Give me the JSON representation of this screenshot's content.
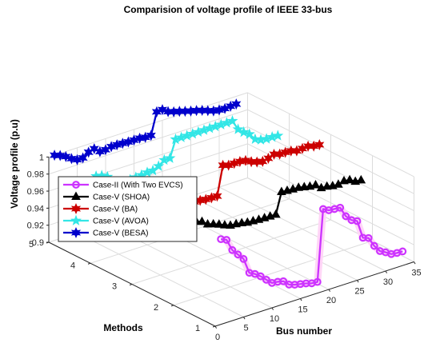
{
  "chart_data": {
    "type": "line3d",
    "title": "Comparision of voltage profile of IEEE 33-bus",
    "xlabel": "Bus number",
    "ylabel": "Methods",
    "zlabel": "Voltage profile (p.u)",
    "xlim": [
      0,
      35
    ],
    "ylim": [
      1,
      5
    ],
    "zlim": [
      0.9,
      1.0
    ],
    "xticks": [
      "0",
      "5",
      "10",
      "15",
      "20",
      "25",
      "30",
      "35"
    ],
    "yticks": [
      "1",
      "2",
      "3",
      "4",
      "5"
    ],
    "zticks": [
      "0.9",
      "0.92",
      "0.94",
      "0.96",
      "0.98",
      "1"
    ],
    "grid": true,
    "legend_position": "lower-left",
    "series": [
      {
        "name": "Case-II (With Two EVCS)",
        "method": 1,
        "color": "#cc33ff",
        "marker": "circle",
        "x": [
          1,
          2,
          3,
          4,
          5,
          6,
          7,
          8,
          9,
          10,
          11,
          12,
          13,
          14,
          15,
          16,
          17,
          18,
          19,
          20,
          21,
          22,
          23,
          24,
          25,
          26,
          27,
          28,
          29,
          30,
          31,
          32,
          33
        ],
        "values": [
          1.0,
          0.997,
          0.9829,
          0.9755,
          0.9681,
          0.9497,
          0.9462,
          0.9413,
          0.9351,
          0.9292,
          0.9284,
          0.9269,
          0.9208,
          0.9185,
          0.9171,
          0.9157,
          0.9137,
          0.9131,
          0.9965,
          0.9929,
          0.9922,
          0.9916,
          0.9794,
          0.9727,
          0.9694,
          0.9477,
          0.9452,
          0.9338,
          0.9256,
          0.922,
          0.9178,
          0.9169,
          0.9166
        ]
      },
      {
        "name": "Case-V (SHOA)",
        "method": 2,
        "color": "#000000",
        "marker": "triangle",
        "x": [
          1,
          2,
          3,
          4,
          5,
          6,
          7,
          8,
          9,
          10,
          11,
          12,
          13,
          14,
          15,
          16,
          17,
          18,
          19,
          20,
          21,
          22,
          23,
          24,
          25,
          26,
          27,
          28,
          29,
          30,
          31,
          32,
          33
        ],
        "values": [
          1.0,
          0.9985,
          0.992,
          0.9895,
          0.9872,
          0.982,
          0.98,
          0.9775,
          0.9745,
          0.972,
          0.9715,
          0.9705,
          0.969,
          0.9685,
          0.968,
          0.9678,
          0.9676,
          0.9675,
          0.992,
          0.9912,
          0.9908,
          0.9905,
          0.989,
          0.9875,
          0.987,
          0.9815,
          0.981,
          0.9795,
          0.979,
          0.981,
          0.98,
          0.976,
          0.9755
        ]
      },
      {
        "name": "Case-V (BA)",
        "method": 3,
        "color": "#cc0000",
        "marker": "hexagram",
        "x": [
          1,
          2,
          3,
          4,
          5,
          6,
          7,
          8,
          9,
          10,
          11,
          12,
          13,
          14,
          15,
          16,
          17,
          18,
          19,
          20,
          21,
          22,
          23,
          24,
          25,
          26,
          27,
          28,
          29,
          30,
          31,
          32,
          33
        ],
        "values": [
          1.0,
          0.9975,
          0.9905,
          0.988,
          0.986,
          0.9815,
          0.9795,
          0.9775,
          0.9755,
          0.9735,
          0.973,
          0.9725,
          0.9715,
          0.9712,
          0.971,
          1.005,
          1.003,
          1.003,
          1.003,
          1.002,
          0.9985,
          0.996,
          0.9945,
          0.996,
          0.9985,
          0.9965,
          0.9965,
          0.996,
          0.994,
          0.9945,
          0.995,
          0.993,
          0.9925
        ]
      },
      {
        "name": "Case-V (AVOA)",
        "method": 4,
        "color": "#33e6e6",
        "marker": "pentagram",
        "x": [
          1,
          2,
          3,
          4,
          5,
          6,
          7,
          8,
          9,
          10,
          11,
          12,
          13,
          14,
          15,
          16,
          17,
          18,
          19,
          20,
          21,
          22,
          23,
          24,
          25,
          26,
          27,
          28,
          29,
          30,
          31,
          32,
          33
        ],
        "values": [
          1.0,
          0.9985,
          0.995,
          0.983,
          0.981,
          0.982,
          0.983,
          0.9835,
          0.984,
          0.985,
          0.985,
          0.988,
          0.993,
          0.993,
          1.013,
          1.013,
          1.013,
          1.013,
          1.013,
          1.013,
          1.013,
          1.013,
          1.013,
          1.013,
          1.013,
          1.001,
          0.9955,
          0.991,
          0.983,
          0.98,
          0.979,
          0.979,
          0.9785
        ]
      },
      {
        "name": "Case-V (BESA)",
        "method": 5,
        "color": "#0000cc",
        "marker": "hexagram",
        "x": [
          1,
          2,
          3,
          4,
          5,
          6,
          7,
          8,
          9,
          10,
          11,
          12,
          13,
          14,
          15,
          16,
          17,
          18,
          19,
          20,
          21,
          22,
          23,
          24,
          25,
          26,
          27,
          28,
          29,
          30,
          31,
          32,
          33
        ],
        "values": [
          1.0,
          0.9975,
          0.994,
          0.9895,
          0.986,
          0.986,
          0.9905,
          0.9925,
          0.987,
          0.987,
          0.9885,
          0.9885,
          0.988,
          0.9875,
          0.9875,
          0.9875,
          0.9865,
          0.9865,
          1.012,
          1.0125,
          1.008,
          1.0055,
          1.004,
          1.002,
          1.0,
          0.9985,
          0.9965,
          0.994,
          0.9915,
          0.9905,
          0.99,
          0.9905,
          0.991
        ]
      }
    ]
  }
}
